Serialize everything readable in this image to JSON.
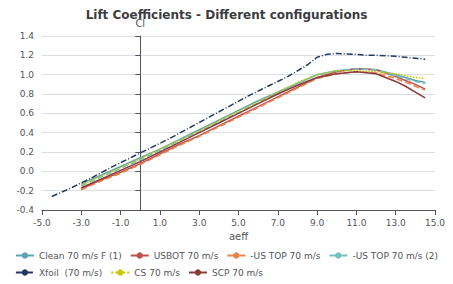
{
  "chart_data": {
    "type": "line",
    "title": "Lift Coefficients - Different configurations",
    "xlabel": "aeff",
    "ylabel": "Cl",
    "xlim": [
      -5.0,
      15.0
    ],
    "ylim": [
      -0.4,
      1.4
    ],
    "xticks": [
      {
        "value": -5.0,
        "label": "-5.0"
      },
      {
        "value": -3.0,
        "label": "-3.0"
      },
      {
        "value": -1.0,
        "label": "-1.0"
      },
      {
        "value": 1.0,
        "label": "1.0"
      },
      {
        "value": 3.0,
        "label": "3.0"
      },
      {
        "value": 5.0,
        "label": "5.0"
      },
      {
        "value": 7.0,
        "label": "7.0"
      },
      {
        "value": 9.0,
        "label": "9.0"
      },
      {
        "value": 11.0,
        "label": "11.0"
      },
      {
        "value": 13.0,
        "label": "13.0"
      },
      {
        "value": 15.0,
        "label": "15.0"
      }
    ],
    "yticks": [
      -0.4,
      -0.2,
      {
        "value": 0.0,
        "label": "0.0"
      },
      0.2,
      0.4,
      0.6,
      0.8,
      {
        "value": 1.0,
        "label": "1.0"
      },
      1.2,
      1.4
    ],
    "grid": true,
    "legend": "bottom",
    "series": [
      {
        "name": "Clean 70 m/s F (1)",
        "color": "#5ba4b4",
        "line_style": "solid",
        "x": [
          -3.0,
          -2.0,
          -1.0,
          0.0,
          1.0,
          2.0,
          3.0,
          4.0,
          5.0,
          6.0,
          7.0,
          8.0,
          9.0,
          10.0,
          11.0,
          12.0,
          13.0,
          13.5,
          14.0,
          14.5
        ],
        "values": [
          -0.13,
          -0.04,
          0.05,
          0.14,
          0.23,
          0.33,
          0.43,
          0.53,
          0.63,
          0.73,
          0.82,
          0.91,
          1.0,
          1.04,
          1.06,
          1.05,
          1.0,
          0.97,
          0.94,
          0.92
        ]
      },
      {
        "name": "USBOT 70 m/s",
        "color": "#c0504d",
        "line_style": "solid",
        "x": [
          -3.0,
          -2.0,
          -1.0,
          0.0,
          1.0,
          2.0,
          3.0,
          4.0,
          5.0,
          6.0,
          7.0,
          8.0,
          9.0,
          10.0,
          11.0,
          12.0,
          13.0,
          13.5,
          14.0,
          14.5
        ],
        "values": [
          -0.18,
          -0.09,
          -0.01,
          0.08,
          0.18,
          0.28,
          0.37,
          0.47,
          0.57,
          0.67,
          0.77,
          0.87,
          0.97,
          1.03,
          1.06,
          1.05,
          0.98,
          0.94,
          0.9,
          0.85
        ]
      },
      {
        "name": "-US TOP 70 m/s",
        "color": "#e8834a",
        "line_style": "dashed",
        "x": [
          -3.0,
          -2.0,
          -1.0,
          0.0,
          1.0,
          2.0,
          3.0,
          4.0,
          5.0,
          6.0,
          7.0,
          8.0,
          9.0,
          10.0,
          11.0,
          12.0,
          13.0,
          13.5,
          14.0,
          14.5
        ],
        "values": [
          -0.19,
          -0.1,
          -0.02,
          0.07,
          0.17,
          0.27,
          0.36,
          0.46,
          0.56,
          0.66,
          0.76,
          0.86,
          0.96,
          1.01,
          1.03,
          1.02,
          0.96,
          0.92,
          0.88,
          0.84
        ]
      },
      {
        "name": "-US TOP 70 m/s (2)",
        "color": "#72c1ba",
        "line_style": "dashed",
        "x": [
          -3.0,
          -2.0,
          -1.0,
          0.0,
          1.0,
          2.0,
          3.0,
          4.0,
          5.0,
          6.0,
          7.0,
          8.0,
          9.0,
          10.0,
          11.0,
          12.0,
          13.0,
          13.5,
          14.0,
          14.5
        ],
        "values": [
          -0.15,
          -0.06,
          0.03,
          0.12,
          0.22,
          0.32,
          0.41,
          0.51,
          0.61,
          0.71,
          0.81,
          0.91,
          1.0,
          1.04,
          1.06,
          1.05,
          0.99,
          0.96,
          0.93,
          0.91
        ]
      },
      {
        "name": "Xfoil  (70 m/s)",
        "color": "#1f3864",
        "line_style": "dashdot",
        "x": [
          -4.5,
          -3.5,
          -2.5,
          -1.5,
          -0.5,
          0.5,
          1.5,
          2.5,
          3.5,
          4.5,
          5.5,
          6.5,
          7.5,
          8.5,
          9.0,
          9.5,
          10.0,
          11.0,
          11.5,
          12.0,
          13.0,
          13.5,
          14.5
        ],
        "values": [
          -0.26,
          -0.17,
          -0.07,
          0.04,
          0.14,
          0.24,
          0.34,
          0.45,
          0.56,
          0.67,
          0.78,
          0.88,
          0.98,
          1.1,
          1.18,
          1.21,
          1.22,
          1.21,
          1.2,
          1.2,
          1.19,
          1.18,
          1.16
        ]
      },
      {
        "name": "CS 70 m/s",
        "color": "#c8c800",
        "line_style": "dotted",
        "x": [
          -3.0,
          -2.0,
          -1.0,
          0.0,
          1.0,
          2.0,
          3.0,
          4.0,
          5.0,
          6.0,
          7.0,
          8.0,
          9.0,
          10.0,
          11.0,
          12.0,
          13.0,
          13.5,
          14.0,
          14.5
        ],
        "values": [
          -0.14,
          -0.05,
          0.04,
          0.13,
          0.23,
          0.32,
          0.42,
          0.52,
          0.62,
          0.72,
          0.82,
          0.92,
          1.0,
          1.04,
          1.04,
          1.03,
          1.01,
          0.99,
          0.97,
          0.96
        ]
      },
      {
        "name": "SCP 70 m/s",
        "color": "#8b3a3a",
        "line_style": "solid",
        "x": [
          -3.0,
          -2.0,
          -1.0,
          0.0,
          1.0,
          2.0,
          3.0,
          4.0,
          5.0,
          6.0,
          7.0,
          8.0,
          9.0,
          10.0,
          11.0,
          12.0,
          13.0,
          13.5,
          14.0,
          14.5
        ],
        "values": [
          -0.17,
          -0.08,
          0.01,
          0.1,
          0.2,
          0.3,
          0.4,
          0.5,
          0.6,
          0.7,
          0.8,
          0.89,
          0.97,
          1.01,
          1.03,
          1.01,
          0.93,
          0.88,
          0.82,
          0.76
        ]
      }
    ]
  }
}
